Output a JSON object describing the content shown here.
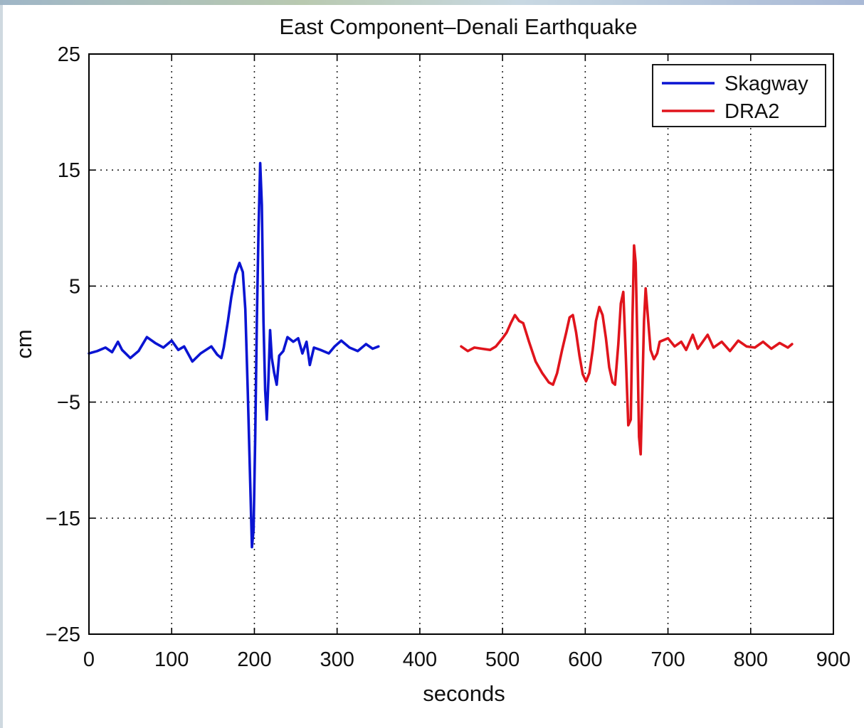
{
  "chart_data": {
    "type": "line",
    "title": "East Component–Denali Earthquake",
    "xlabel": "seconds",
    "ylabel": "cm",
    "xlim": [
      0,
      900
    ],
    "ylim": [
      -25,
      25
    ],
    "xticks": [
      0,
      100,
      200,
      300,
      400,
      500,
      600,
      700,
      800,
      900
    ],
    "yticks": [
      25,
      15,
      5,
      -5,
      -15,
      -25
    ],
    "ytick_labels": [
      "25",
      "15",
      "5",
      "−5",
      "−15",
      "−25"
    ],
    "grid": true,
    "legend_position": "top-right",
    "series": [
      {
        "name": "Skagway",
        "color": "#0a14d2",
        "points": [
          [
            0,
            -0.8
          ],
          [
            10,
            -0.6
          ],
          [
            20,
            -0.3
          ],
          [
            28,
            -0.7
          ],
          [
            35,
            0.2
          ],
          [
            40,
            -0.5
          ],
          [
            50,
            -1.2
          ],
          [
            60,
            -0.6
          ],
          [
            70,
            0.6
          ],
          [
            80,
            0.1
          ],
          [
            90,
            -0.3
          ],
          [
            100,
            0.3
          ],
          [
            108,
            -0.5
          ],
          [
            115,
            -0.2
          ],
          [
            125,
            -1.5
          ],
          [
            135,
            -0.8
          ],
          [
            148,
            -0.2
          ],
          [
            155,
            -0.9
          ],
          [
            160,
            -1.2
          ],
          [
            163,
            -0.3
          ],
          [
            168,
            2.0
          ],
          [
            172,
            4.0
          ],
          [
            177,
            6.0
          ],
          [
            182,
            7.0
          ],
          [
            186,
            6.2
          ],
          [
            189,
            3.0
          ],
          [
            192,
            -4.0
          ],
          [
            195,
            -12.0
          ],
          [
            197,
            -17.5
          ],
          [
            199,
            -16.0
          ],
          [
            201,
            -8.0
          ],
          [
            203,
            2.0
          ],
          [
            205,
            10.0
          ],
          [
            207,
            15.6
          ],
          [
            209,
            12.0
          ],
          [
            211,
            2.0
          ],
          [
            213,
            -4.0
          ],
          [
            215,
            -6.5
          ],
          [
            217,
            -3.0
          ],
          [
            219,
            1.2
          ],
          [
            221,
            -1.2
          ],
          [
            224,
            -2.5
          ],
          [
            227,
            -3.5
          ],
          [
            230,
            -1.0
          ],
          [
            235,
            -0.6
          ],
          [
            240,
            0.6
          ],
          [
            247,
            0.2
          ],
          [
            253,
            0.5
          ],
          [
            258,
            -0.8
          ],
          [
            263,
            0.2
          ],
          [
            267,
            -1.8
          ],
          [
            272,
            -0.3
          ],
          [
            280,
            -0.5
          ],
          [
            290,
            -0.8
          ],
          [
            297,
            -0.2
          ],
          [
            305,
            0.3
          ],
          [
            315,
            -0.3
          ],
          [
            325,
            -0.6
          ],
          [
            335,
            0.0
          ],
          [
            343,
            -0.4
          ],
          [
            350,
            -0.2
          ]
        ]
      },
      {
        "name": "DRA2",
        "color": "#e0141c",
        "points": [
          [
            450,
            -0.2
          ],
          [
            458,
            -0.6
          ],
          [
            466,
            -0.3
          ],
          [
            475,
            -0.4
          ],
          [
            485,
            -0.5
          ],
          [
            492,
            -0.2
          ],
          [
            500,
            0.5
          ],
          [
            505,
            1.0
          ],
          [
            510,
            1.8
          ],
          [
            515,
            2.5
          ],
          [
            520,
            2.0
          ],
          [
            525,
            1.8
          ],
          [
            532,
            0.2
          ],
          [
            540,
            -1.5
          ],
          [
            548,
            -2.5
          ],
          [
            556,
            -3.3
          ],
          [
            561,
            -3.5
          ],
          [
            566,
            -2.5
          ],
          [
            572,
            -0.5
          ],
          [
            577,
            1.0
          ],
          [
            581,
            2.3
          ],
          [
            585,
            2.5
          ],
          [
            589,
            1.0
          ],
          [
            593,
            -1.0
          ],
          [
            597,
            -2.6
          ],
          [
            601,
            -3.2
          ],
          [
            605,
            -2.5
          ],
          [
            609,
            -0.5
          ],
          [
            613,
            2.0
          ],
          [
            617,
            3.2
          ],
          [
            621,
            2.5
          ],
          [
            625,
            0.5
          ],
          [
            629,
            -2.0
          ],
          [
            633,
            -3.3
          ],
          [
            636,
            -3.5
          ],
          [
            640,
            0.0
          ],
          [
            643,
            3.5
          ],
          [
            646,
            4.5
          ],
          [
            649,
            -1.0
          ],
          [
            652,
            -7.0
          ],
          [
            655,
            -6.5
          ],
          [
            657,
            2.0
          ],
          [
            659,
            8.5
          ],
          [
            661,
            7.0
          ],
          [
            663,
            0.0
          ],
          [
            665,
            -8.0
          ],
          [
            667,
            -9.5
          ],
          [
            669,
            -4.0
          ],
          [
            671,
            2.0
          ],
          [
            673,
            4.8
          ],
          [
            675,
            3.0
          ],
          [
            679,
            -0.5
          ],
          [
            683,
            -1.3
          ],
          [
            687,
            -0.8
          ],
          [
            690,
            0.2
          ],
          [
            700,
            0.5
          ],
          [
            708,
            -0.2
          ],
          [
            716,
            0.2
          ],
          [
            722,
            -0.5
          ],
          [
            730,
            0.8
          ],
          [
            736,
            -0.4
          ],
          [
            742,
            0.2
          ],
          [
            748,
            0.8
          ],
          [
            755,
            -0.3
          ],
          [
            765,
            0.2
          ],
          [
            775,
            -0.6
          ],
          [
            785,
            0.3
          ],
          [
            795,
            -0.2
          ],
          [
            805,
            -0.3
          ],
          [
            815,
            0.2
          ],
          [
            825,
            -0.4
          ],
          [
            835,
            0.1
          ],
          [
            845,
            -0.3
          ],
          [
            850,
            0.0
          ]
        ]
      }
    ]
  }
}
